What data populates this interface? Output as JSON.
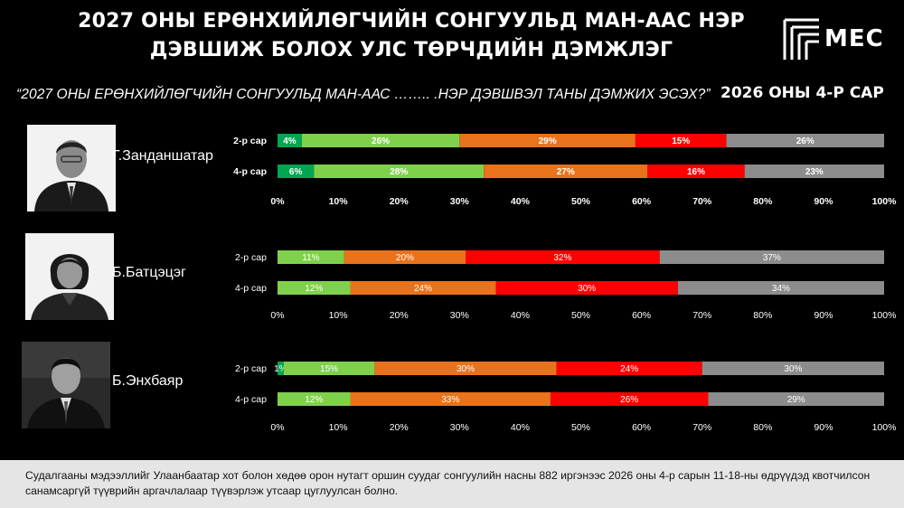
{
  "header": {
    "title_line1": "2027 ОНЫ ЕРӨНХИЙЛӨГЧИЙН СОНГУУЛЬД МАН-ААС НЭР",
    "title_line2": "ДЭВШИЖ БОЛОХ УЛС ТӨРЧДИЙН ДЭМЖЛЭГ",
    "logo_text": "MEC"
  },
  "question": "“2027 ОНЫ ЕРӨНХИЙЛӨГЧИЙН СОНГУУЛЬД МАН-ААС …….. .НЭР ДЭВШВЭЛ ТАНЫ ДЭМЖИХ ЭСЭХ?”",
  "period": "2026 ОНЫ 4-Р САР",
  "footnote": "Судалгааны мэдээллийг Улаанбаатар хот болон хөдөө орон нутагт оршин суудаг сонгуулийн насны 882 иргэнээс 2026 оны 4-р сарын 11-18-ны өдрүүдэд квотчилсон санамсаргүй түүврийн аргачлалаар түүвэрлэж утсаар цуглуулсан болно.",
  "colors": [
    "#00a651",
    "#7fd14c",
    "#e8731c",
    "#ff0000",
    "#8c8c8c"
  ],
  "chart_data": [
    {
      "type": "bar",
      "person": "Г.Занданшатар",
      "categories": [
        "2-р сар",
        "4-р сар"
      ],
      "segments": [
        [
          4,
          26,
          29,
          15,
          26
        ],
        [
          6,
          28,
          27,
          16,
          23
        ]
      ],
      "xticks": [
        "0%",
        "10%",
        "20%",
        "30%",
        "40%",
        "50%",
        "60%",
        "70%",
        "80%",
        "90%",
        "100%"
      ],
      "xlim": [
        0,
        100
      ]
    },
    {
      "type": "bar",
      "person": "Б.Батцэцэг",
      "categories": [
        "2-р сар",
        "4-р сар"
      ],
      "segments": [
        [
          0,
          11,
          20,
          32,
          37
        ],
        [
          0,
          12,
          24,
          30,
          34
        ]
      ],
      "xticks": [
        "0%",
        "10%",
        "20%",
        "30%",
        "40%",
        "50%",
        "60%",
        "70%",
        "80%",
        "90%",
        "100%"
      ],
      "xlim": [
        0,
        100
      ]
    },
    {
      "type": "bar",
      "person": "Б.Энхбаяр",
      "categories": [
        "2-р сар",
        "4-р сар"
      ],
      "segments": [
        [
          1,
          15,
          30,
          24,
          30
        ],
        [
          0,
          12,
          33,
          26,
          29
        ]
      ],
      "xticks": [
        "0%",
        "10%",
        "20%",
        "30%",
        "40%",
        "50%",
        "60%",
        "70%",
        "80%",
        "90%",
        "100%"
      ],
      "xlim": [
        0,
        100
      ]
    }
  ]
}
